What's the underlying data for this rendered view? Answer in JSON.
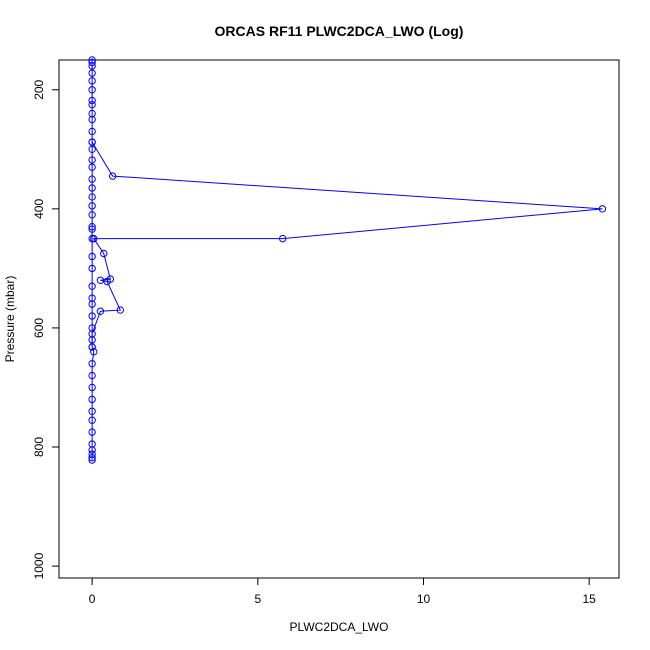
{
  "chart_data": {
    "type": "line",
    "title": "ORCAS RF11 PLWC2DCA_LWO (Log)",
    "xlabel": "PLWC2DCA_LWO",
    "ylabel": "Pressure (mbar)",
    "xlim": [
      -1.0,
      15.9
    ],
    "ylim": [
      1020,
      150
    ],
    "y_reversed": true,
    "x_ticks": [
      0,
      5,
      10,
      15
    ],
    "y_ticks": [
      200,
      400,
      600,
      800,
      1000
    ],
    "grid": false,
    "legend": "none",
    "series": [
      {
        "color": "#0000ff",
        "marker": "open-circle",
        "points": [
          {
            "x": 0,
            "y": 150
          },
          {
            "x": 0,
            "y": 154
          },
          {
            "x": 0,
            "y": 160
          },
          {
            "x": 0,
            "y": 172
          },
          {
            "x": 0,
            "y": 185
          },
          {
            "x": 0,
            "y": 200
          },
          {
            "x": 0,
            "y": 218
          },
          {
            "x": 0,
            "y": 225
          },
          {
            "x": 0,
            "y": 240
          },
          {
            "x": 0,
            "y": 250
          },
          {
            "x": 0,
            "y": 270
          },
          {
            "x": 0,
            "y": 288
          },
          {
            "x": 0.62,
            "y": 345
          },
          {
            "x": 15.4,
            "y": 400
          },
          {
            "x": 5.75,
            "y": 450
          },
          {
            "x": 0.05,
            "y": 450
          },
          {
            "x": 0.35,
            "y": 475
          },
          {
            "x": 0.55,
            "y": 518
          },
          {
            "x": 0.25,
            "y": 520
          },
          {
            "x": 0.45,
            "y": 522
          },
          {
            "x": 0.85,
            "y": 570
          },
          {
            "x": 0.25,
            "y": 572
          },
          {
            "x": 0,
            "y": 610
          },
          {
            "x": 0,
            "y": 632
          },
          {
            "x": 0.05,
            "y": 640
          },
          {
            "x": 0,
            "y": 660
          },
          {
            "x": 0,
            "y": 680
          },
          {
            "x": 0,
            "y": 700
          },
          {
            "x": 0,
            "y": 720
          },
          {
            "x": 0,
            "y": 740
          },
          {
            "x": 0,
            "y": 755
          },
          {
            "x": 0,
            "y": 775
          },
          {
            "x": 0,
            "y": 795
          },
          {
            "x": 0,
            "y": 805
          },
          {
            "x": 0,
            "y": 812
          },
          {
            "x": 0,
            "y": 818
          },
          {
            "x": 0,
            "y": 822
          }
        ]
      },
      {
        "color": "#0000ff",
        "marker": "open-circle",
        "points": [
          {
            "x": 0,
            "y": 288
          },
          {
            "x": 0,
            "y": 300
          },
          {
            "x": 0,
            "y": 318
          },
          {
            "x": 0,
            "y": 330
          },
          {
            "x": 0,
            "y": 350
          },
          {
            "x": 0,
            "y": 365
          },
          {
            "x": 0,
            "y": 380
          },
          {
            "x": 0,
            "y": 395
          },
          {
            "x": 0,
            "y": 410
          },
          {
            "x": 0,
            "y": 430
          },
          {
            "x": 0,
            "y": 434
          },
          {
            "x": 0,
            "y": 450
          },
          {
            "x": 0,
            "y": 480
          },
          {
            "x": 0,
            "y": 500
          },
          {
            "x": 0,
            "y": 530
          },
          {
            "x": 0,
            "y": 550
          },
          {
            "x": 0,
            "y": 560
          },
          {
            "x": 0,
            "y": 580
          },
          {
            "x": 0,
            "y": 600
          },
          {
            "x": 0,
            "y": 620
          },
          {
            "x": 0,
            "y": 632
          }
        ]
      }
    ]
  }
}
